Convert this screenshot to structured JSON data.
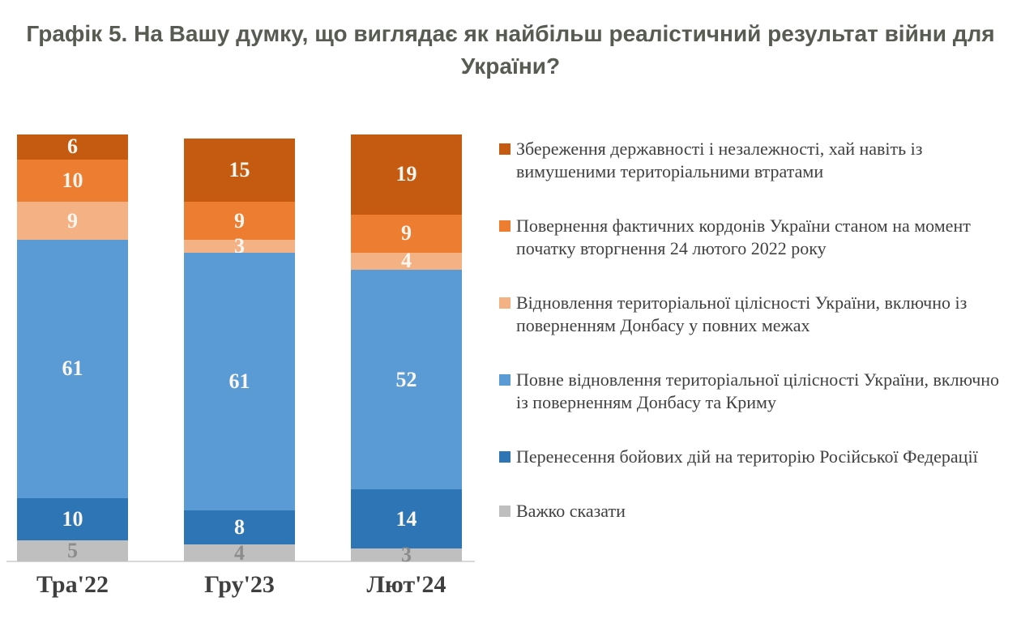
{
  "title": {
    "line1": "Графік 5. На Вашу думку, що виглядає як найбільш реалістичний результат війни для",
    "line2": "України?"
  },
  "chart_data": {
    "type": "bar",
    "stacked": true,
    "orientation": "vertical",
    "grid": false,
    "legend_position": "right",
    "axis_line_color": "#D9D9D9",
    "ylim": [
      0,
      101
    ],
    "categories": [
      "Тра'22",
      "Гру'23",
      "Лют'24"
    ],
    "series_stack_order": "top-to-bottom",
    "series": [
      {
        "name": "Збереження державності і незалежності, хай навіть із вимушеними територіальними втратами",
        "color": "#C55A11",
        "label_color": "#FBF7F0",
        "values": [
          6,
          15,
          19
        ]
      },
      {
        "name": "Повернення фактичних кордонів України станом на момент початку вторгнення 24 лютого 2022 року",
        "color": "#ED7D31",
        "label_color": "#FBF7F0",
        "values": [
          10,
          9,
          9
        ]
      },
      {
        "name": "Відновлення територіальної цілісності України, включно із поверненням Донбасу у повних межах",
        "color": "#F4B183",
        "label_color": "#FBF7F0",
        "values": [
          9,
          3,
          4
        ]
      },
      {
        "name": "Повне відновлення територіальної цілісності України, включно із поверненням Донбасу та Криму",
        "color": "#5B9BD5",
        "label_color": "#FBF7F0",
        "values": [
          61,
          61,
          52
        ]
      },
      {
        "name": "Перенесення бойових дій на територію Російської Федерації",
        "color": "#2E75B6",
        "label_color": "#FBF7F0",
        "values": [
          10,
          8,
          14
        ]
      },
      {
        "name": "Важко сказати",
        "color": "#BFBFBF",
        "label_color": "#8C8C8C",
        "values": [
          5,
          4,
          3
        ]
      }
    ]
  }
}
